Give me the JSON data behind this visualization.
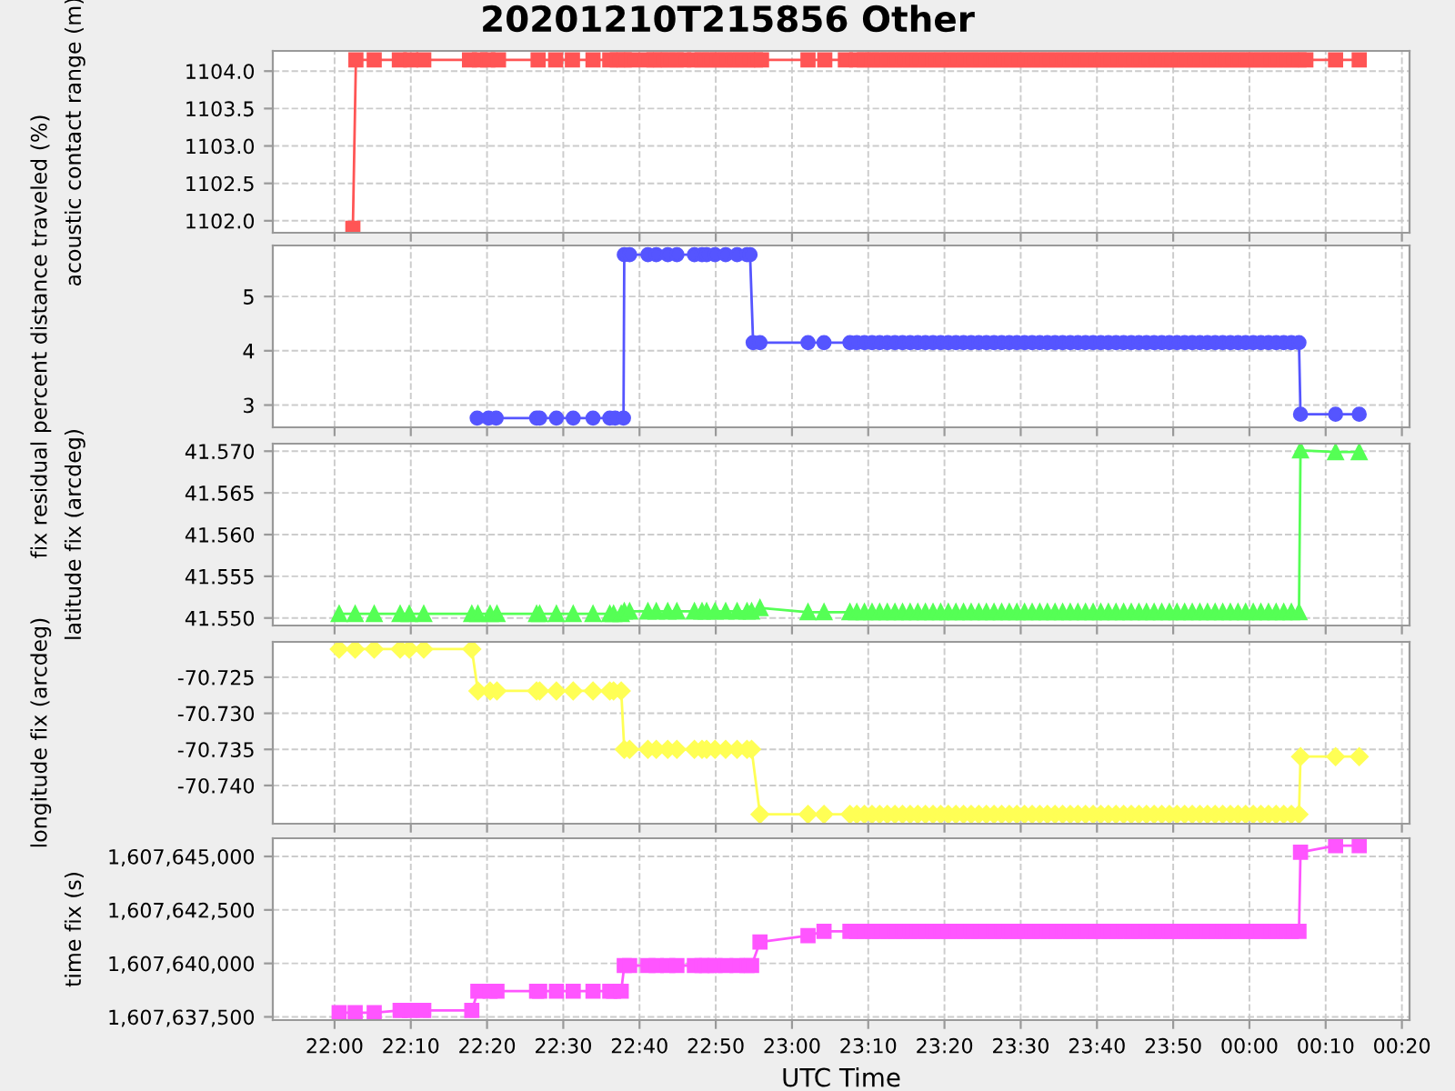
{
  "chart_data": [
    {
      "type": "line",
      "title": "20201210T215856 Other",
      "ylabel": "acoustic contact range (m)",
      "marker": "square",
      "line_style": "solid",
      "grid": true,
      "tick_labels": "y",
      "xlim": [
        "2020-12-10T21:51:54",
        "2020-12-11T00:21:00"
      ],
      "xticks": [
        {
          "value": "2020-12-10T22:00",
          "label": null
        },
        {
          "value": "2020-12-10T22:10",
          "label": null
        },
        {
          "value": "2020-12-10T22:20",
          "label": null
        },
        {
          "value": "2020-12-10T22:30",
          "label": null
        },
        {
          "value": "2020-12-10T22:40",
          "label": null
        },
        {
          "value": "2020-12-10T22:50",
          "label": null
        },
        {
          "value": "2020-12-10T23:00",
          "label": null
        },
        {
          "value": "2020-12-10T23:10",
          "label": null
        },
        {
          "value": "2020-12-10T23:20",
          "label": null
        },
        {
          "value": "2020-12-10T23:30",
          "label": null
        },
        {
          "value": "2020-12-10T23:40",
          "label": null
        },
        {
          "value": "2020-12-10T23:50",
          "label": null
        },
        {
          "value": "2020-12-11T00:00",
          "label": null
        },
        {
          "value": "2020-12-11T00:10",
          "label": null
        },
        {
          "value": "2020-12-11T00:20",
          "label": null
        }
      ],
      "ylim": [
        1101.84,
        1104.27
      ],
      "yticks": [
        {
          "value": 1102.0,
          "label": "1102.0"
        },
        {
          "value": 1102.5,
          "label": "1102.5"
        },
        {
          "value": 1103.0,
          "label": "1103.0"
        },
        {
          "value": 1103.5,
          "label": "1103.5"
        },
        {
          "value": 1104.0,
          "label": "1104.0"
        }
      ],
      "series": [
        {
          "color": "#ff5555",
          "x": [
            "2020-12-10T22:02:24",
            "2020-12-10T22:02:48",
            "2020-12-10T22:05:12",
            "2020-12-10T22:08:30",
            "2020-12-10T22:10:00",
            "2020-12-10T22:11:42",
            "2020-12-10T22:17:42",
            "2020-12-10T22:19:00",
            "2020-12-10T22:20:06",
            "2020-12-10T22:21:30",
            "2020-12-10T22:26:42",
            "2020-12-10T22:29:00",
            "2020-12-10T22:31:12",
            "2020-12-10T22:33:54",
            "2020-12-10T22:36:06",
            "2020-12-10T22:37:06",
            "2020-12-10T22:38:00",
            "2020-12-10T22:39:00",
            "2020-12-10T22:40:54",
            "2020-12-10T22:41:54",
            "2020-12-10T22:42:48",
            "2020-12-10T22:43:48",
            "2020-12-10T22:44:48",
            "2020-12-10T22:45:48",
            "2020-12-10T22:47:12",
            "2020-12-10T22:48:12",
            "2020-12-10T22:49:12",
            "2020-12-10T22:50:12",
            "2020-12-10T22:51:12",
            "2020-12-10T22:52:12",
            "2020-12-10T22:53:12",
            "2020-12-10T22:54:12",
            "2020-12-10T22:55:12",
            "2020-12-10T22:56:00",
            "2020-12-10T23:02:06",
            "2020-12-10T23:04:18",
            "2020-12-10T23:07:00",
            "2020-12-10T23:08:30",
            "2020-12-10T23:09:30",
            "2020-12-10T23:10:30",
            "2020-12-10T23:11:30",
            "2020-12-10T23:12:30",
            "2020-12-10T23:13:30",
            "2020-12-10T23:14:30",
            "2020-12-10T23:15:30",
            "2020-12-10T23:16:30",
            "2020-12-10T23:17:30",
            "2020-12-10T23:18:30",
            "2020-12-10T23:19:30",
            "2020-12-10T23:20:30",
            "2020-12-10T23:21:30",
            "2020-12-10T23:22:30",
            "2020-12-10T23:23:30",
            "2020-12-10T23:24:30",
            "2020-12-10T23:25:30",
            "2020-12-10T23:26:30",
            "2020-12-10T23:27:30",
            "2020-12-10T23:28:30",
            "2020-12-10T23:29:30",
            "2020-12-10T23:30:30",
            "2020-12-10T23:31:30",
            "2020-12-10T23:32:30",
            "2020-12-10T23:33:30",
            "2020-12-10T23:34:30",
            "2020-12-10T23:35:30",
            "2020-12-10T23:36:30",
            "2020-12-10T23:37:30",
            "2020-12-10T23:38:30",
            "2020-12-10T23:39:30",
            "2020-12-10T23:40:30",
            "2020-12-10T23:41:30",
            "2020-12-10T23:42:30",
            "2020-12-10T23:43:30",
            "2020-12-10T23:44:30",
            "2020-12-10T23:45:30",
            "2020-12-10T23:46:30",
            "2020-12-10T23:47:30",
            "2020-12-10T23:48:30",
            "2020-12-10T23:49:30",
            "2020-12-10T23:50:30",
            "2020-12-10T23:51:30",
            "2020-12-10T23:52:30",
            "2020-12-10T23:53:30",
            "2020-12-10T23:54:30",
            "2020-12-10T23:55:30",
            "2020-12-10T23:56:30",
            "2020-12-10T23:57:30",
            "2020-12-10T23:58:30",
            "2020-12-10T23:59:30",
            "2020-12-11T00:00:30",
            "2020-12-11T00:01:30",
            "2020-12-11T00:02:30",
            "2020-12-11T00:03:30",
            "2020-12-11T00:04:30",
            "2020-12-11T00:05:30",
            "2020-12-11T00:06:30",
            "2020-12-11T00:07:24",
            "2020-12-11T00:11:18",
            "2020-12-11T00:14:24"
          ],
          "values": [
            1101.9,
            1104.15,
            1104.15,
            1104.15,
            1104.15,
            1104.15,
            1104.15,
            1104.15,
            1104.15,
            1104.15,
            1104.15,
            1104.15,
            1104.15,
            1104.15,
            1104.15,
            1104.15,
            1104.15,
            1104.15,
            1104.15,
            1104.15,
            1104.15,
            1104.15,
            1104.15,
            1104.15,
            1104.15,
            1104.15,
            1104.15,
            1104.15,
            1104.15,
            1104.15,
            1104.15,
            1104.15,
            1104.15,
            1104.15,
            1104.15,
            1104.15,
            1104.15,
            1104.15,
            1104.15,
            1104.15,
            1104.15,
            1104.15,
            1104.15,
            1104.15,
            1104.15,
            1104.15,
            1104.15,
            1104.15,
            1104.15,
            1104.15,
            1104.15,
            1104.15,
            1104.15,
            1104.15,
            1104.15,
            1104.15,
            1104.15,
            1104.15,
            1104.15,
            1104.15,
            1104.15,
            1104.15,
            1104.15,
            1104.15,
            1104.15,
            1104.15,
            1104.15,
            1104.15,
            1104.15,
            1104.15,
            1104.15,
            1104.15,
            1104.15,
            1104.15,
            1104.15,
            1104.15,
            1104.15,
            1104.15,
            1104.15,
            1104.15,
            1104.15,
            1104.15,
            1104.15,
            1104.15,
            1104.15,
            1104.15,
            1104.15,
            1104.15,
            1104.15,
            1104.15,
            1104.15,
            1104.15,
            1104.15,
            1104.15,
            1104.15,
            1104.15,
            1104.15,
            1104.15,
            1104.15
          ]
        }
      ]
    },
    {
      "type": "line",
      "ylabel": "fix residual percent distance traveled (%)",
      "marker": "circle",
      "line_style": "solid",
      "grid": true,
      "tick_labels": "y",
      "xlim": [
        "2020-12-10T21:51:54",
        "2020-12-11T00:21:00"
      ],
      "xticks": [
        {
          "value": "2020-12-10T22:00",
          "label": null
        },
        {
          "value": "2020-12-10T22:10",
          "label": null
        },
        {
          "value": "2020-12-10T22:20",
          "label": null
        },
        {
          "value": "2020-12-10T22:30",
          "label": null
        },
        {
          "value": "2020-12-10T22:40",
          "label": null
        },
        {
          "value": "2020-12-10T22:50",
          "label": null
        },
        {
          "value": "2020-12-10T23:00",
          "label": null
        },
        {
          "value": "2020-12-10T23:10",
          "label": null
        },
        {
          "value": "2020-12-10T23:20",
          "label": null
        },
        {
          "value": "2020-12-10T23:30",
          "label": null
        },
        {
          "value": "2020-12-10T23:40",
          "label": null
        },
        {
          "value": "2020-12-10T23:50",
          "label": null
        },
        {
          "value": "2020-12-11T00:00",
          "label": null
        },
        {
          "value": "2020-12-11T00:10",
          "label": null
        },
        {
          "value": "2020-12-11T00:20",
          "label": null
        }
      ],
      "ylim": [
        2.59,
        5.94
      ],
      "yticks": [
        3,
        4,
        5
      ],
      "series": [
        {
          "color": "#5555ff",
          "x": [
            "2020-12-10T22:18:42",
            "2020-12-10T22:20:12",
            "2020-12-10T22:21:12",
            "2020-12-10T22:26:30",
            "2020-12-10T22:26:54",
            "2020-12-10T22:29:06",
            "2020-12-10T22:31:18",
            "2020-12-10T22:33:54",
            "2020-12-10T22:36:06",
            "2020-12-10T22:36:48",
            "2020-12-10T22:37:54",
            "2020-12-10T22:38:00",
            "2020-12-10T22:38:42",
            "2020-12-10T22:41:06",
            "2020-12-10T22:42:12",
            "2020-12-10T22:43:42",
            "2020-12-10T22:44:54",
            "2020-12-10T22:47:12",
            "2020-12-10T22:48:12",
            "2020-12-10T22:48:48",
            "2020-12-10T22:49:54",
            "2020-12-10T22:51:18",
            "2020-12-10T22:52:48",
            "2020-12-10T22:54:06",
            "2020-12-10T22:54:30",
            "2020-12-10T22:54:54",
            "2020-12-10T22:55:48",
            "2020-12-10T23:02:06",
            "2020-12-10T23:04:12",
            "2020-12-10T23:07:36",
            "2020-12-10T23:08:30",
            "2020-12-10T23:09:30",
            "2020-12-10T23:10:30",
            "2020-12-10T23:11:30",
            "2020-12-10T23:12:30",
            "2020-12-10T23:13:30",
            "2020-12-10T23:14:30",
            "2020-12-10T23:15:30",
            "2020-12-10T23:16:30",
            "2020-12-10T23:17:30",
            "2020-12-10T23:18:30",
            "2020-12-10T23:19:30",
            "2020-12-10T23:20:30",
            "2020-12-10T23:21:30",
            "2020-12-10T23:22:30",
            "2020-12-10T23:23:30",
            "2020-12-10T23:24:30",
            "2020-12-10T23:25:30",
            "2020-12-10T23:26:30",
            "2020-12-10T23:27:30",
            "2020-12-10T23:28:30",
            "2020-12-10T23:29:30",
            "2020-12-10T23:30:30",
            "2020-12-10T23:31:30",
            "2020-12-10T23:32:30",
            "2020-12-10T23:33:30",
            "2020-12-10T23:34:30",
            "2020-12-10T23:35:30",
            "2020-12-10T23:36:30",
            "2020-12-10T23:37:30",
            "2020-12-10T23:38:30",
            "2020-12-10T23:39:30",
            "2020-12-10T23:40:30",
            "2020-12-10T23:41:30",
            "2020-12-10T23:42:30",
            "2020-12-10T23:43:30",
            "2020-12-10T23:44:30",
            "2020-12-10T23:45:30",
            "2020-12-10T23:46:30",
            "2020-12-10T23:47:30",
            "2020-12-10T23:48:30",
            "2020-12-10T23:49:30",
            "2020-12-10T23:50:30",
            "2020-12-10T23:51:30",
            "2020-12-10T23:52:30",
            "2020-12-10T23:53:30",
            "2020-12-10T23:54:30",
            "2020-12-10T23:55:30",
            "2020-12-10T23:56:30",
            "2020-12-10T23:57:30",
            "2020-12-10T23:58:30",
            "2020-12-10T23:59:30",
            "2020-12-11T00:00:30",
            "2020-12-11T00:01:30",
            "2020-12-11T00:02:30",
            "2020-12-11T00:03:30",
            "2020-12-11T00:04:30",
            "2020-12-11T00:05:30",
            "2020-12-11T00:06:30",
            "2020-12-11T00:06:42",
            "2020-12-11T00:11:18",
            "2020-12-11T00:14:24"
          ],
          "values": [
            2.76,
            2.76,
            2.76,
            2.76,
            2.76,
            2.76,
            2.76,
            2.76,
            2.76,
            2.76,
            2.76,
            5.77,
            5.77,
            5.77,
            5.77,
            5.77,
            5.77,
            5.77,
            5.77,
            5.77,
            5.77,
            5.77,
            5.77,
            5.77,
            5.77,
            4.15,
            4.15,
            4.15,
            4.15,
            4.15,
            4.15,
            4.15,
            4.15,
            4.15,
            4.15,
            4.15,
            4.15,
            4.15,
            4.15,
            4.15,
            4.15,
            4.15,
            4.15,
            4.15,
            4.15,
            4.15,
            4.15,
            4.15,
            4.15,
            4.15,
            4.15,
            4.15,
            4.15,
            4.15,
            4.15,
            4.15,
            4.15,
            4.15,
            4.15,
            4.15,
            4.15,
            4.15,
            4.15,
            4.15,
            4.15,
            4.15,
            4.15,
            4.15,
            4.15,
            4.15,
            4.15,
            4.15,
            4.15,
            4.15,
            4.15,
            4.15,
            4.15,
            4.15,
            4.15,
            4.15,
            4.15,
            4.15,
            4.15,
            4.15,
            4.15,
            4.15,
            4.15,
            4.15,
            4.15,
            2.83,
            2.83,
            2.83
          ]
        }
      ]
    },
    {
      "type": "line",
      "ylabel": "latitude fix (arcdeg)",
      "marker": "triangle",
      "line_style": "solid",
      "grid": true,
      "tick_labels": "y",
      "xlim": [
        "2020-12-10T21:51:54",
        "2020-12-11T00:21:00"
      ],
      "xticks": [
        {
          "value": "2020-12-10T22:00",
          "label": null
        },
        {
          "value": "2020-12-10T22:10",
          "label": null
        },
        {
          "value": "2020-12-10T22:20",
          "label": null
        },
        {
          "value": "2020-12-10T22:30",
          "label": null
        },
        {
          "value": "2020-12-10T22:40",
          "label": null
        },
        {
          "value": "2020-12-10T22:50",
          "label": null
        },
        {
          "value": "2020-12-10T23:00",
          "label": null
        },
        {
          "value": "2020-12-10T23:10",
          "label": null
        },
        {
          "value": "2020-12-10T23:20",
          "label": null
        },
        {
          "value": "2020-12-10T23:30",
          "label": null
        },
        {
          "value": "2020-12-10T23:40",
          "label": null
        },
        {
          "value": "2020-12-10T23:50",
          "label": null
        },
        {
          "value": "2020-12-11T00:00",
          "label": null
        },
        {
          "value": "2020-12-11T00:10",
          "label": null
        },
        {
          "value": "2020-12-11T00:20",
          "label": null
        }
      ],
      "x": [
        "2020-12-10T22:00:36",
        "2020-12-10T22:02:42",
        "2020-12-10T22:05:12",
        "2020-12-10T22:08:36",
        "2020-12-10T22:09:48",
        "2020-12-10T22:11:42",
        "2020-12-10T22:18:00",
        "2020-12-10T22:18:48",
        "2020-12-10T22:20:24",
        "2020-12-10T22:21:18",
        "2020-12-10T22:26:30",
        "2020-12-10T22:26:54",
        "2020-12-10T22:29:06",
        "2020-12-10T22:31:18",
        "2020-12-10T22:33:54",
        "2020-12-10T22:36:06",
        "2020-12-10T22:36:36",
        "2020-12-10T22:37:36",
        "2020-12-10T22:38:00",
        "2020-12-10T22:38:42",
        "2020-12-10T22:41:06",
        "2020-12-10T22:42:12",
        "2020-12-10T22:43:42",
        "2020-12-10T22:44:54",
        "2020-12-10T22:47:12",
        "2020-12-10T22:48:12",
        "2020-12-10T22:48:48",
        "2020-12-10T22:49:54",
        "2020-12-10T22:51:18",
        "2020-12-10T22:52:48",
        "2020-12-10T22:54:06",
        "2020-12-10T22:54:42",
        "2020-12-10T22:55:48",
        "2020-12-10T23:02:06",
        "2020-12-10T23:04:12",
        "2020-12-10T23:07:36",
        "2020-12-10T23:08:30",
        "2020-12-10T23:09:30",
        "2020-12-10T23:10:30",
        "2020-12-10T23:11:30",
        "2020-12-10T23:12:30",
        "2020-12-10T23:13:30",
        "2020-12-10T23:14:30",
        "2020-12-10T23:15:30",
        "2020-12-10T23:16:30",
        "2020-12-10T23:17:30",
        "2020-12-10T23:18:30",
        "2020-12-10T23:19:30",
        "2020-12-10T23:20:30",
        "2020-12-10T23:21:30",
        "2020-12-10T23:22:30",
        "2020-12-10T23:23:30",
        "2020-12-10T23:24:30",
        "2020-12-10T23:25:30",
        "2020-12-10T23:26:30",
        "2020-12-10T23:27:30",
        "2020-12-10T23:28:30",
        "2020-12-10T23:29:30",
        "2020-12-10T23:30:30",
        "2020-12-10T23:31:30",
        "2020-12-10T23:32:30",
        "2020-12-10T23:33:30",
        "2020-12-10T23:34:30",
        "2020-12-10T23:35:30",
        "2020-12-10T23:36:30",
        "2020-12-10T23:37:30",
        "2020-12-10T23:38:30",
        "2020-12-10T23:39:30",
        "2020-12-10T23:40:30",
        "2020-12-10T23:41:30",
        "2020-12-10T23:42:30",
        "2020-12-10T23:43:30",
        "2020-12-10T23:44:30",
        "2020-12-10T23:45:30",
        "2020-12-10T23:46:30",
        "2020-12-10T23:47:30",
        "2020-12-10T23:48:30",
        "2020-12-10T23:49:30",
        "2020-12-10T23:50:30",
        "2020-12-10T23:51:30",
        "2020-12-10T23:52:30",
        "2020-12-10T23:53:30",
        "2020-12-10T23:54:30",
        "2020-12-10T23:55:30",
        "2020-12-10T23:56:30",
        "2020-12-10T23:57:30",
        "2020-12-10T23:58:30",
        "2020-12-10T23:59:30",
        "2020-12-11T00:00:30",
        "2020-12-11T00:01:30",
        "2020-12-11T00:02:30",
        "2020-12-11T00:03:30",
        "2020-12-11T00:04:30",
        "2020-12-11T00:05:30",
        "2020-12-11T00:06:30",
        "2020-12-11T00:06:42",
        "2020-12-11T00:11:18",
        "2020-12-11T00:14:24"
      ],
      "ylim": [
        41.5491,
        41.5709
      ],
      "yticks": [
        {
          "value": 41.55,
          "label": "41.550"
        },
        41.555,
        {
          "value": 41.56,
          "label": "41.560"
        },
        41.565,
        {
          "value": 41.57,
          "label": "41.570"
        }
      ],
      "series": [
        {
          "color": "#55ff55",
          "values": [
            41.5505,
            41.5505,
            41.5505,
            41.5505,
            41.5505,
            41.5505,
            41.5505,
            41.5505,
            41.5505,
            41.5505,
            41.5505,
            41.5505,
            41.5505,
            41.5505,
            41.5505,
            41.5505,
            41.5505,
            41.5505,
            41.5508,
            41.5508,
            41.5508,
            41.5508,
            41.5508,
            41.5508,
            41.5508,
            41.5508,
            41.5508,
            41.5508,
            41.5508,
            41.5508,
            41.5508,
            41.5508,
            41.5512,
            41.5507,
            41.5507,
            41.5507,
            41.5507,
            41.5507,
            41.5507,
            41.5507,
            41.5507,
            41.5507,
            41.5507,
            41.5507,
            41.5507,
            41.5507,
            41.5507,
            41.5507,
            41.5507,
            41.5507,
            41.5507,
            41.5507,
            41.5507,
            41.5507,
            41.5507,
            41.5507,
            41.5507,
            41.5507,
            41.5507,
            41.5507,
            41.5507,
            41.5507,
            41.5507,
            41.5507,
            41.5507,
            41.5507,
            41.5507,
            41.5507,
            41.5507,
            41.5507,
            41.5507,
            41.5507,
            41.5507,
            41.5507,
            41.5507,
            41.5507,
            41.5507,
            41.5507,
            41.5507,
            41.5507,
            41.5507,
            41.5507,
            41.5507,
            41.5507,
            41.5507,
            41.5507,
            41.5507,
            41.5507,
            41.5507,
            41.5507,
            41.5507,
            41.5507,
            41.5507,
            41.5507,
            41.5507,
            41.5701,
            41.5699,
            41.5699
          ]
        }
      ]
    },
    {
      "type": "line",
      "ylabel": "longitude fix (arcdeg)",
      "marker": "diamond",
      "line_style": "solid",
      "grid": true,
      "tick_labels": "y",
      "xlim": [
        "2020-12-10T21:51:54",
        "2020-12-11T00:21:00"
      ],
      "xticks": [
        {
          "value": "2020-12-10T22:00",
          "label": null
        },
        {
          "value": "2020-12-10T22:10",
          "label": null
        },
        {
          "value": "2020-12-10T22:20",
          "label": null
        },
        {
          "value": "2020-12-10T22:30",
          "label": null
        },
        {
          "value": "2020-12-10T22:40",
          "label": null
        },
        {
          "value": "2020-12-10T22:50",
          "label": null
        },
        {
          "value": "2020-12-10T23:00",
          "label": null
        },
        {
          "value": "2020-12-10T23:10",
          "label": null
        },
        {
          "value": "2020-12-10T23:20",
          "label": null
        },
        {
          "value": "2020-12-10T23:30",
          "label": null
        },
        {
          "value": "2020-12-10T23:40",
          "label": null
        },
        {
          "value": "2020-12-10T23:50",
          "label": null
        },
        {
          "value": "2020-12-11T00:00",
          "label": null
        },
        {
          "value": "2020-12-11T00:10",
          "label": null
        },
        {
          "value": "2020-12-11T00:20",
          "label": null
        }
      ],
      "x": [
        "2020-12-10T22:00:36",
        "2020-12-10T22:02:42",
        "2020-12-10T22:05:12",
        "2020-12-10T22:08:36",
        "2020-12-10T22:09:48",
        "2020-12-10T22:11:42",
        "2020-12-10T22:18:00",
        "2020-12-10T22:18:48",
        "2020-12-10T22:20:24",
        "2020-12-10T22:21:18",
        "2020-12-10T22:26:30",
        "2020-12-10T22:26:54",
        "2020-12-10T22:29:06",
        "2020-12-10T22:31:18",
        "2020-12-10T22:33:54",
        "2020-12-10T22:36:06",
        "2020-12-10T22:36:36",
        "2020-12-10T22:37:36",
        "2020-12-10T22:38:00",
        "2020-12-10T22:38:42",
        "2020-12-10T22:41:06",
        "2020-12-10T22:42:12",
        "2020-12-10T22:43:42",
        "2020-12-10T22:44:54",
        "2020-12-10T22:47:12",
        "2020-12-10T22:48:12",
        "2020-12-10T22:48:48",
        "2020-12-10T22:49:54",
        "2020-12-10T22:51:18",
        "2020-12-10T22:52:48",
        "2020-12-10T22:54:06",
        "2020-12-10T22:54:42",
        "2020-12-10T22:55:48",
        "2020-12-10T23:02:06",
        "2020-12-10T23:04:12",
        "2020-12-10T23:07:36",
        "2020-12-10T23:08:30",
        "2020-12-10T23:09:30",
        "2020-12-10T23:10:30",
        "2020-12-10T23:11:30",
        "2020-12-10T23:12:30",
        "2020-12-10T23:13:30",
        "2020-12-10T23:14:30",
        "2020-12-10T23:15:30",
        "2020-12-10T23:16:30",
        "2020-12-10T23:17:30",
        "2020-12-10T23:18:30",
        "2020-12-10T23:19:30",
        "2020-12-10T23:20:30",
        "2020-12-10T23:21:30",
        "2020-12-10T23:22:30",
        "2020-12-10T23:23:30",
        "2020-12-10T23:24:30",
        "2020-12-10T23:25:30",
        "2020-12-10T23:26:30",
        "2020-12-10T23:27:30",
        "2020-12-10T23:28:30",
        "2020-12-10T23:29:30",
        "2020-12-10T23:30:30",
        "2020-12-10T23:31:30",
        "2020-12-10T23:32:30",
        "2020-12-10T23:33:30",
        "2020-12-10T23:34:30",
        "2020-12-10T23:35:30",
        "2020-12-10T23:36:30",
        "2020-12-10T23:37:30",
        "2020-12-10T23:38:30",
        "2020-12-10T23:39:30",
        "2020-12-10T23:40:30",
        "2020-12-10T23:41:30",
        "2020-12-10T23:42:30",
        "2020-12-10T23:43:30",
        "2020-12-10T23:44:30",
        "2020-12-10T23:45:30",
        "2020-12-10T23:46:30",
        "2020-12-10T23:47:30",
        "2020-12-10T23:48:30",
        "2020-12-10T23:49:30",
        "2020-12-10T23:50:30",
        "2020-12-10T23:51:30",
        "2020-12-10T23:52:30",
        "2020-12-10T23:53:30",
        "2020-12-10T23:54:30",
        "2020-12-10T23:55:30",
        "2020-12-10T23:56:30",
        "2020-12-10T23:57:30",
        "2020-12-10T23:58:30",
        "2020-12-10T23:59:30",
        "2020-12-11T00:00:30",
        "2020-12-11T00:01:30",
        "2020-12-11T00:02:30",
        "2020-12-11T00:03:30",
        "2020-12-11T00:04:30",
        "2020-12-11T00:05:30",
        "2020-12-11T00:06:30",
        "2020-12-11T00:06:42",
        "2020-12-11T00:11:18",
        "2020-12-11T00:14:24"
      ],
      "ylim": [
        -70.7453,
        -70.7201
      ],
      "yticks": [
        {
          "value": -70.74,
          "label": "-70.740"
        },
        -70.735,
        {
          "value": -70.73,
          "label": "-70.730"
        },
        -70.725
      ],
      "series": [
        {
          "color": "#ffff55",
          "values": [
            -70.7211,
            -70.7211,
            -70.7211,
            -70.7211,
            -70.7211,
            -70.7211,
            -70.7211,
            -70.7269,
            -70.7269,
            -70.7269,
            -70.7269,
            -70.7269,
            -70.7269,
            -70.7269,
            -70.7269,
            -70.7269,
            -70.7269,
            -70.7269,
            -70.735,
            -70.735,
            -70.735,
            -70.735,
            -70.735,
            -70.735,
            -70.735,
            -70.735,
            -70.735,
            -70.735,
            -70.735,
            -70.735,
            -70.735,
            -70.735,
            -70.744,
            -70.744,
            -70.744,
            -70.744,
            -70.744,
            -70.744,
            -70.744,
            -70.744,
            -70.744,
            -70.744,
            -70.744,
            -70.744,
            -70.744,
            -70.744,
            -70.744,
            -70.744,
            -70.744,
            -70.744,
            -70.744,
            -70.744,
            -70.744,
            -70.744,
            -70.744,
            -70.744,
            -70.744,
            -70.744,
            -70.744,
            -70.744,
            -70.744,
            -70.744,
            -70.744,
            -70.744,
            -70.744,
            -70.744,
            -70.744,
            -70.744,
            -70.744,
            -70.744,
            -70.744,
            -70.744,
            -70.744,
            -70.744,
            -70.744,
            -70.744,
            -70.744,
            -70.744,
            -70.744,
            -70.744,
            -70.744,
            -70.744,
            -70.744,
            -70.744,
            -70.744,
            -70.744,
            -70.744,
            -70.744,
            -70.744,
            -70.744,
            -70.744,
            -70.744,
            -70.744,
            -70.744,
            -70.744,
            -70.736,
            -70.736,
            -70.736
          ]
        }
      ]
    },
    {
      "type": "line",
      "ylabel": "time fix (s)",
      "xlabel": "UTC Time",
      "marker": "square",
      "line_style": "solid",
      "grid": true,
      "xlim": [
        "2020-12-10T21:51:54",
        "2020-12-11T00:21:00"
      ],
      "xticks": [
        {
          "value": "2020-12-10T22:00",
          "label": "22:00"
        },
        {
          "value": "2020-12-10T22:10",
          "label": "22:10"
        },
        {
          "value": "2020-12-10T22:20",
          "label": "22:20"
        },
        {
          "value": "2020-12-10T22:30",
          "label": "22:30"
        },
        {
          "value": "2020-12-10T22:40",
          "label": "22:40"
        },
        {
          "value": "2020-12-10T22:50",
          "label": "22:50"
        },
        {
          "value": "2020-12-10T23:00",
          "label": "23:00"
        },
        {
          "value": "2020-12-10T23:10",
          "label": "23:10"
        },
        {
          "value": "2020-12-10T23:20",
          "label": "23:20"
        },
        {
          "value": "2020-12-10T23:30",
          "label": "23:30"
        },
        {
          "value": "2020-12-10T23:40",
          "label": "23:40"
        },
        {
          "value": "2020-12-10T23:50",
          "label": "23:50"
        },
        {
          "value": "2020-12-11T00:00",
          "label": "00:00"
        },
        {
          "value": "2020-12-11T00:10",
          "label": "00:10"
        },
        {
          "value": "2020-12-11T00:20",
          "label": "00:20"
        }
      ],
      "x": [
        "2020-12-10T22:00:36",
        "2020-12-10T22:02:42",
        "2020-12-10T22:05:12",
        "2020-12-10T22:08:36",
        "2020-12-10T22:09:48",
        "2020-12-10T22:11:42",
        "2020-12-10T22:18:00",
        "2020-12-10T22:18:48",
        "2020-12-10T22:20:24",
        "2020-12-10T22:21:18",
        "2020-12-10T22:26:30",
        "2020-12-10T22:26:54",
        "2020-12-10T22:29:06",
        "2020-12-10T22:31:18",
        "2020-12-10T22:33:54",
        "2020-12-10T22:36:06",
        "2020-12-10T22:36:36",
        "2020-12-10T22:37:36",
        "2020-12-10T22:38:00",
        "2020-12-10T22:38:42",
        "2020-12-10T22:41:06",
        "2020-12-10T22:42:12",
        "2020-12-10T22:43:42",
        "2020-12-10T22:44:54",
        "2020-12-10T22:47:12",
        "2020-12-10T22:48:12",
        "2020-12-10T22:48:48",
        "2020-12-10T22:49:54",
        "2020-12-10T22:51:18",
        "2020-12-10T22:52:48",
        "2020-12-10T22:54:06",
        "2020-12-10T22:54:42",
        "2020-12-10T22:55:48",
        "2020-12-10T23:02:06",
        "2020-12-10T23:04:12",
        "2020-12-10T23:07:36",
        "2020-12-10T23:08:30",
        "2020-12-10T23:09:30",
        "2020-12-10T23:10:30",
        "2020-12-10T23:11:30",
        "2020-12-10T23:12:30",
        "2020-12-10T23:13:30",
        "2020-12-10T23:14:30",
        "2020-12-10T23:15:30",
        "2020-12-10T23:16:30",
        "2020-12-10T23:17:30",
        "2020-12-10T23:18:30",
        "2020-12-10T23:19:30",
        "2020-12-10T23:20:30",
        "2020-12-10T23:21:30",
        "2020-12-10T23:22:30",
        "2020-12-10T23:23:30",
        "2020-12-10T23:24:30",
        "2020-12-10T23:25:30",
        "2020-12-10T23:26:30",
        "2020-12-10T23:27:30",
        "2020-12-10T23:28:30",
        "2020-12-10T23:29:30",
        "2020-12-10T23:30:30",
        "2020-12-10T23:31:30",
        "2020-12-10T23:32:30",
        "2020-12-10T23:33:30",
        "2020-12-10T23:34:30",
        "2020-12-10T23:35:30",
        "2020-12-10T23:36:30",
        "2020-12-10T23:37:30",
        "2020-12-10T23:38:30",
        "2020-12-10T23:39:30",
        "2020-12-10T23:40:30",
        "2020-12-10T23:41:30",
        "2020-12-10T23:42:30",
        "2020-12-10T23:43:30",
        "2020-12-10T23:44:30",
        "2020-12-10T23:45:30",
        "2020-12-10T23:46:30",
        "2020-12-10T23:47:30",
        "2020-12-10T23:48:30",
        "2020-12-10T23:49:30",
        "2020-12-10T23:50:30",
        "2020-12-10T23:51:30",
        "2020-12-10T23:52:30",
        "2020-12-10T23:53:30",
        "2020-12-10T23:54:30",
        "2020-12-10T23:55:30",
        "2020-12-10T23:56:30",
        "2020-12-10T23:57:30",
        "2020-12-10T23:58:30",
        "2020-12-10T23:59:30",
        "2020-12-11T00:00:30",
        "2020-12-11T00:01:30",
        "2020-12-11T00:02:30",
        "2020-12-11T00:03:30",
        "2020-12-11T00:04:30",
        "2020-12-11T00:05:30",
        "2020-12-11T00:06:30",
        "2020-12-11T00:06:42",
        "2020-12-11T00:11:18",
        "2020-12-11T00:14:24"
      ],
      "ylim": [
        1607637350,
        1607645850
      ],
      "yticks": [
        {
          "value": 1607637500,
          "label": "1,607,637,500"
        },
        {
          "value": 1607640000,
          "label": "1,607,640,000"
        },
        {
          "value": 1607642500,
          "label": "1,607,642,500"
        },
        {
          "value": 1607645000,
          "label": "1,607,645,000"
        }
      ],
      "series": [
        {
          "color": "#ff55ff",
          "values": [
            1607637700,
            1607637700,
            1607637700,
            1607637800,
            1607637800,
            1607637800,
            1607637800,
            1607638700,
            1607638700,
            1607638700,
            1607638700,
            1607638700,
            1607638700,
            1607638700,
            1607638700,
            1607638700,
            1607638700,
            1607638700,
            1607639900,
            1607639900,
            1607639900,
            1607639900,
            1607639900,
            1607639900,
            1607639900,
            1607639900,
            1607639900,
            1607639900,
            1607639900,
            1607639900,
            1607639900,
            1607639900,
            1607641000,
            1607641300,
            1607641500,
            1607641500,
            1607641500,
            1607641500,
            1607641500,
            1607641500,
            1607641500,
            1607641500,
            1607641500,
            1607641500,
            1607641500,
            1607641500,
            1607641500,
            1607641500,
            1607641500,
            1607641500,
            1607641500,
            1607641500,
            1607641500,
            1607641500,
            1607641500,
            1607641500,
            1607641500,
            1607641500,
            1607641500,
            1607641500,
            1607641500,
            1607641500,
            1607641500,
            1607641500,
            1607641500,
            1607641500,
            1607641500,
            1607641500,
            1607641500,
            1607641500,
            1607641500,
            1607641500,
            1607641500,
            1607641500,
            1607641500,
            1607641500,
            1607641500,
            1607641500,
            1607641500,
            1607641500,
            1607641500,
            1607641500,
            1607641500,
            1607641500,
            1607641500,
            1607641500,
            1607641500,
            1607641500,
            1607641500,
            1607641500,
            1607641500,
            1607641500,
            1607641500,
            1607641500,
            1607641500,
            1607645200,
            1607645500,
            1607645500
          ]
        }
      ]
    }
  ]
}
